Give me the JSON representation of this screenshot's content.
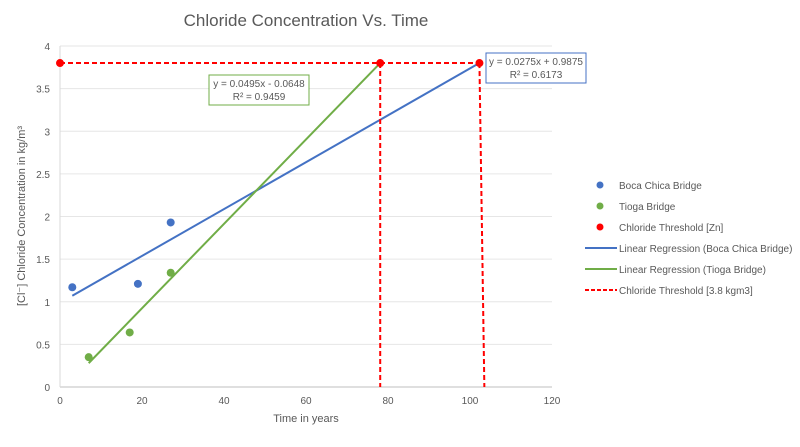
{
  "chart_data": {
    "type": "scatter",
    "title": "Chloride Concentration Vs. Time",
    "xlabel": "Time in years",
    "ylabel": "[Cl⁻] Chloride Concentration in kg/m³",
    "xlim": [
      0,
      120
    ],
    "ylim": [
      0,
      4
    ],
    "xticks": [
      0,
      20,
      40,
      60,
      80,
      100,
      120
    ],
    "yticks": [
      0,
      0.5,
      1,
      1.5,
      2,
      2.5,
      3,
      3.5,
      4
    ],
    "grid": "horizontal",
    "legend_position": "right",
    "series": [
      {
        "name": "Boca Chica Bridge",
        "kind": "points",
        "color": "#4472c4",
        "points": [
          [
            3,
            1.17
          ],
          [
            19,
            1.21
          ],
          [
            27,
            1.93
          ]
        ]
      },
      {
        "name": "Tioga Bridge",
        "kind": "points",
        "color": "#70ad47",
        "points": [
          [
            7,
            0.35
          ],
          [
            17,
            0.64
          ],
          [
            27,
            1.34
          ]
        ]
      },
      {
        "name": "Chloride Threshold [Zn]",
        "kind": "points",
        "color": "#ff0000",
        "points": [
          [
            0,
            3.8
          ],
          [
            78.1,
            3.8
          ],
          [
            102.3,
            3.8
          ]
        ]
      },
      {
        "name": "Linear Regression (Boca Chica Bridge)",
        "kind": "line",
        "color": "#4472c4",
        "points": [
          [
            3,
            1.07
          ],
          [
            102.3,
            3.8
          ]
        ]
      },
      {
        "name": "Linear Regression (Tioga Bridge)",
        "kind": "line",
        "color": "#70ad47",
        "points": [
          [
            7,
            0.28
          ],
          [
            78.1,
            3.8
          ]
        ]
      },
      {
        "name": "Chloride Threshold [3.8 kgm3]",
        "kind": "dashed",
        "color": "#ff0000",
        "segments": [
          [
            [
              0,
              3.8
            ],
            [
              102.3,
              3.8
            ]
          ],
          [
            [
              78.1,
              3.8
            ],
            [
              78.1,
              0
            ]
          ],
          [
            [
              102.3,
              3.8
            ],
            [
              103.5,
              0
            ]
          ]
        ]
      }
    ],
    "annotations": [
      {
        "line1": "y = 0.0495x - 0.0648",
        "line2": "R² = 0.9459",
        "color": "#70ad47"
      },
      {
        "line1": "y = 0.0275x + 0.9875",
        "line2": "R² = 0.6173",
        "color": "#4472c4"
      }
    ]
  }
}
